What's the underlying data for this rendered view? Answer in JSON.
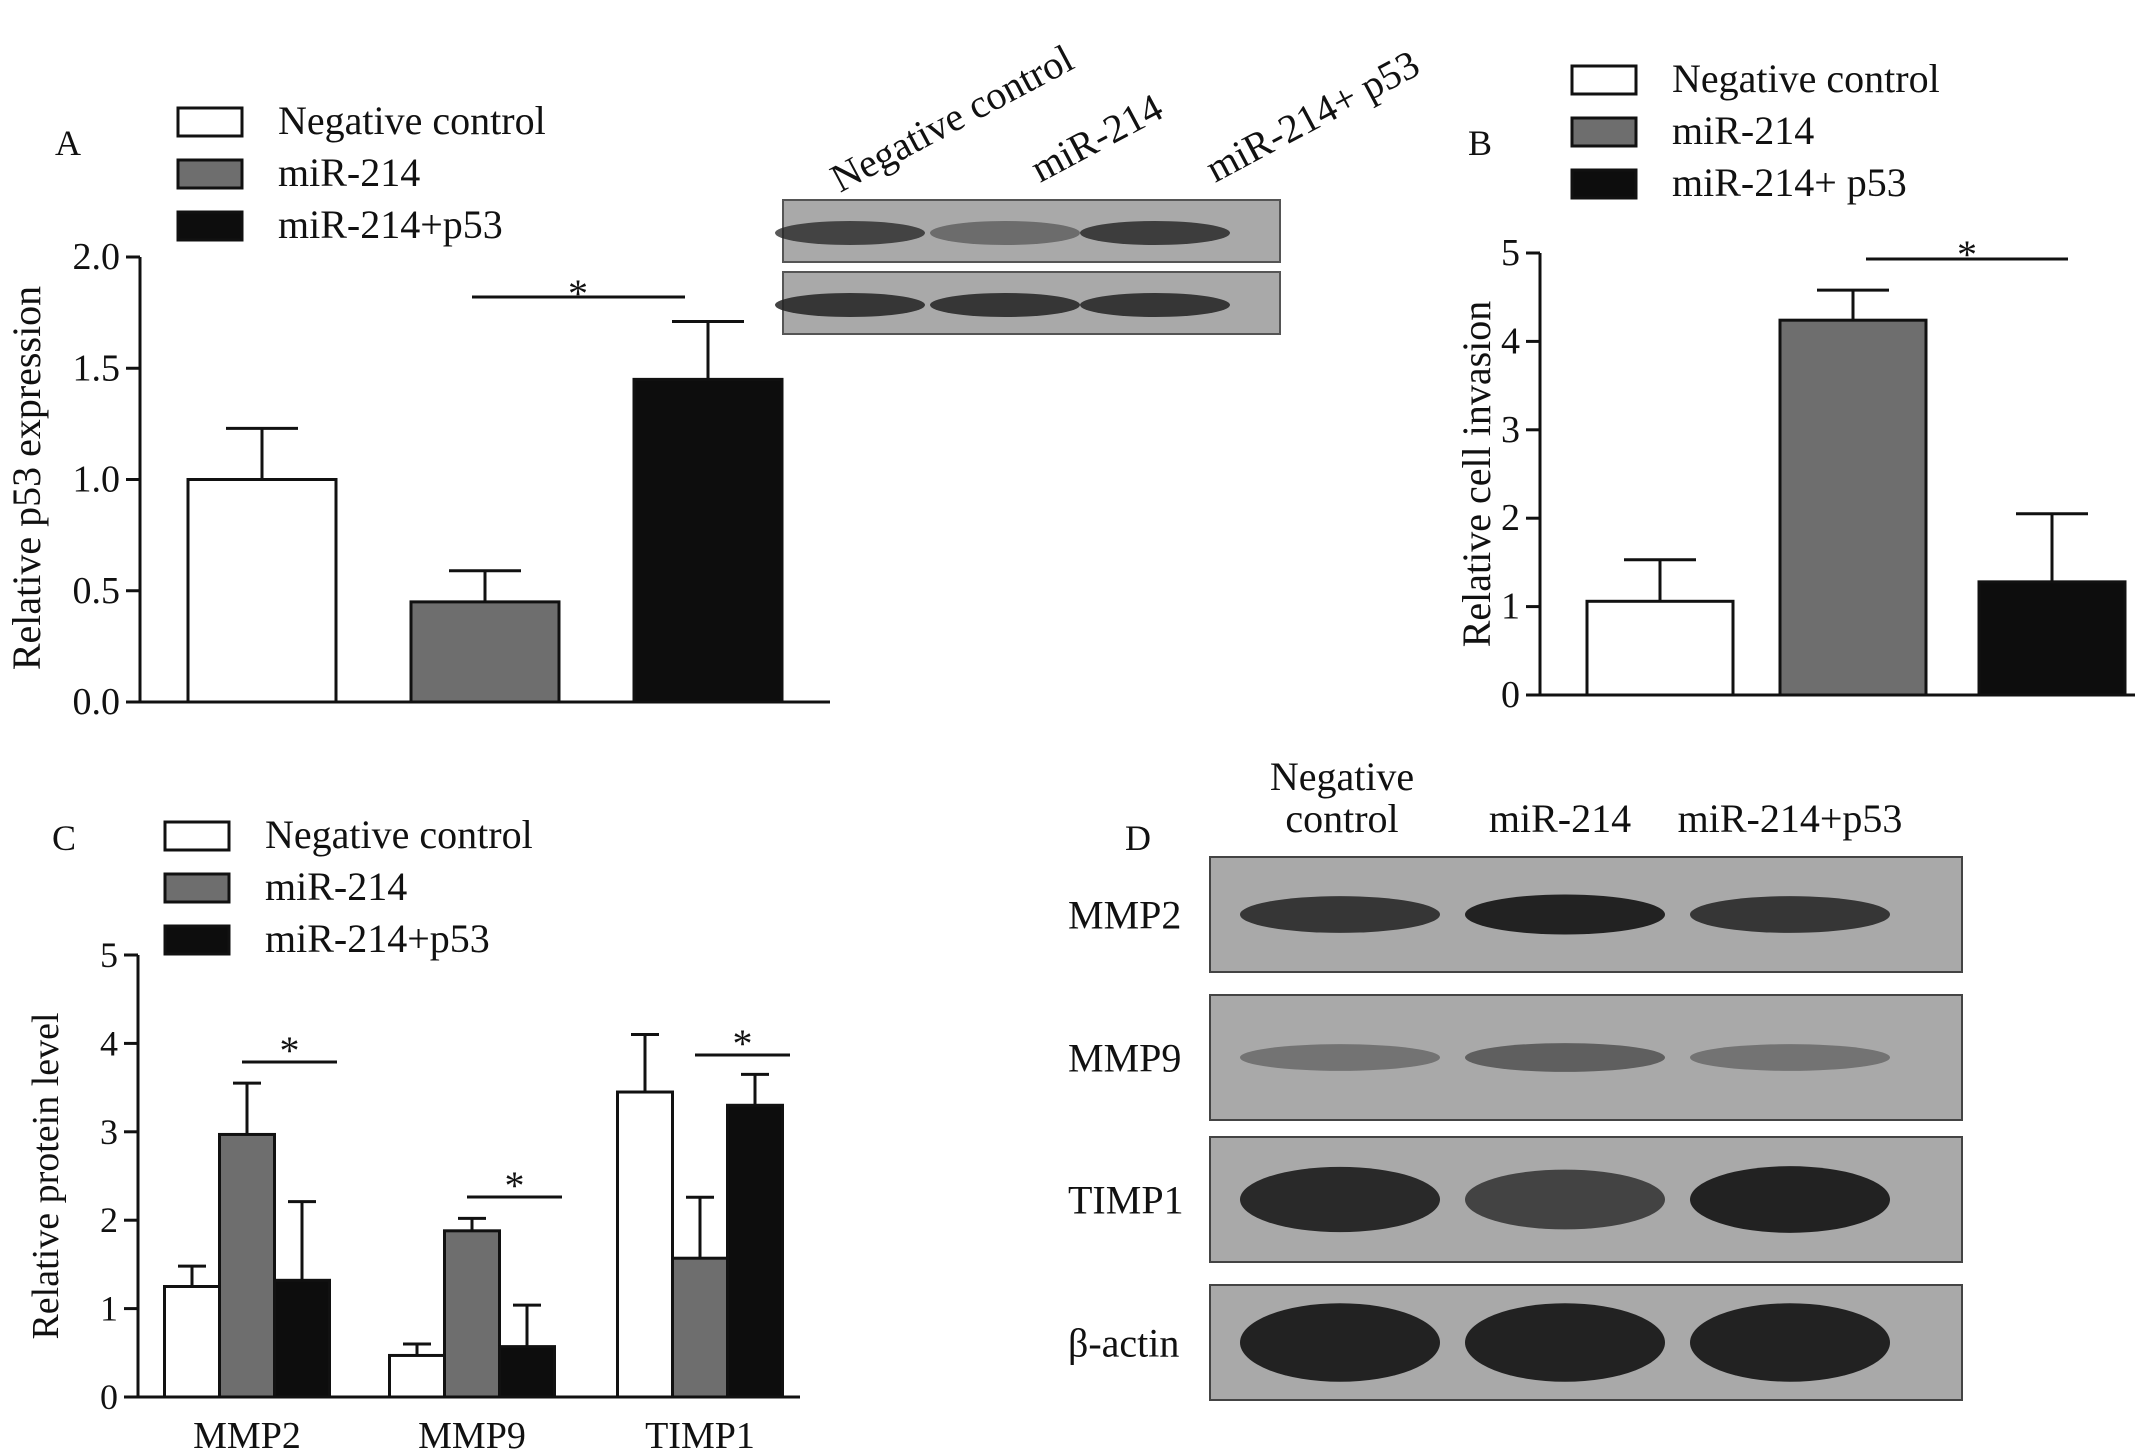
{
  "colors": {
    "negative_control": "#ffffff",
    "mir_214": "#6e6e6e",
    "mir_214_p53": "#0d0d0d",
    "blot_background": "#a9a9a9",
    "blot_band": "#222222"
  },
  "legend_labels": [
    "Negative control",
    "miR-214",
    "miR-214+p53"
  ],
  "legend_labels_b": [
    "Negative control",
    "miR-214",
    "miR-214+ p53"
  ],
  "chart_data": [
    {
      "panel": "A",
      "type": "bar",
      "categories": [
        "Negative control",
        "miR-214",
        "miR-214+p53"
      ],
      "series": [
        {
          "values": [
            1.0,
            0.45,
            1.45
          ],
          "errors": [
            0.23,
            0.14,
            0.26
          ]
        }
      ],
      "ylabel": "Relative p53 expression",
      "ylim": [
        0,
        2.0
      ],
      "yticks": [
        "0.0",
        "0.5",
        "1.0",
        "1.5",
        "2.0"
      ],
      "significance": [
        {
          "between": [
            1,
            2
          ],
          "label": "*"
        }
      ],
      "legend": "top-left"
    },
    {
      "panel": "B",
      "type": "bar",
      "categories": [
        "Negative control",
        "miR-214",
        "miR-214+ p53"
      ],
      "series": [
        {
          "values": [
            1.06,
            4.24,
            1.28
          ],
          "errors": [
            0.47,
            0.34,
            0.77
          ]
        }
      ],
      "ylabel": "Relative cell invasion",
      "ylim": [
        0,
        5
      ],
      "yticks": [
        "0",
        "1",
        "2",
        "3",
        "4",
        "5"
      ],
      "significance": [
        {
          "between": [
            1,
            2
          ],
          "label": "*"
        }
      ],
      "legend": "top"
    },
    {
      "panel": "C",
      "type": "bar",
      "categories": [
        "MMP2",
        "MMP9",
        "TIMP1"
      ],
      "series": [
        {
          "name": "Negative control",
          "values": [
            1.25,
            0.47,
            3.45
          ],
          "errors": [
            0.23,
            0.13,
            0.65
          ]
        },
        {
          "name": "miR-214",
          "values": [
            2.97,
            1.88,
            1.57
          ],
          "errors": [
            0.58,
            0.14,
            0.69
          ]
        },
        {
          "name": "miR-214+p53",
          "values": [
            1.32,
            0.57,
            3.3
          ],
          "errors": [
            0.89,
            0.47,
            0.35
          ]
        }
      ],
      "ylabel": "Relative protein level",
      "ylim": [
        0,
        5
      ],
      "yticks": [
        "0",
        "1",
        "2",
        "3",
        "4",
        "5"
      ],
      "significance": [
        {
          "group": 0,
          "between": [
            1,
            2
          ],
          "label": "*"
        },
        {
          "group": 1,
          "between": [
            1,
            2
          ],
          "label": "*"
        },
        {
          "group": 2,
          "between": [
            1,
            2
          ],
          "label": "*"
        }
      ],
      "legend": "top-left"
    }
  ],
  "panels": {
    "A": {
      "letter": "A",
      "sig": "*"
    },
    "B": {
      "letter": "B",
      "sig": "*"
    },
    "C": {
      "letter": "C",
      "sig": "*"
    },
    "D": {
      "letter": "D"
    }
  },
  "blot_a": {
    "lanes": [
      "Negative control",
      "miR-214",
      "miR-214+ p53"
    ],
    "rows": [
      {
        "intensity": [
          0.75,
          0.45,
          0.8
        ]
      },
      {
        "intensity": [
          0.85,
          0.85,
          0.85
        ]
      }
    ]
  },
  "blot_d": {
    "lane_header_1": [
      "Negative",
      "control"
    ],
    "lane_header_2": "miR-214",
    "lane_header_3": "miR-214+p53",
    "rows": [
      {
        "label": "MMP2",
        "intensity": [
          0.8,
          1.0,
          0.8
        ]
      },
      {
        "label": "MMP9",
        "intensity": [
          0.35,
          0.5,
          0.35
        ]
      },
      {
        "label": "TIMP1",
        "intensity": [
          0.9,
          0.7,
          0.95
        ]
      },
      {
        "label": "β-actin",
        "intensity": [
          0.95,
          0.95,
          0.95
        ]
      }
    ]
  }
}
